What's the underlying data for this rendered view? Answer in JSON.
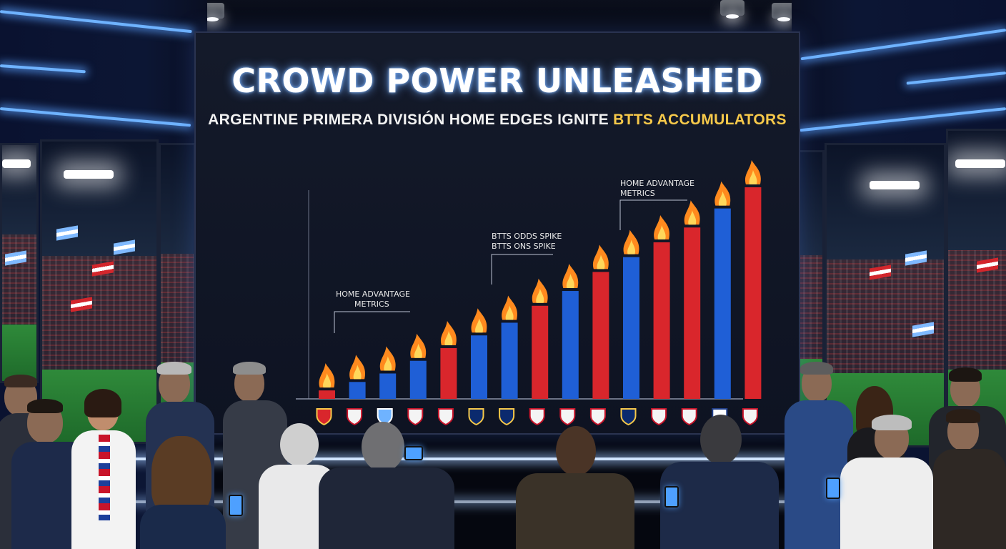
{
  "headline": "CROWD POWER UNLEASHED",
  "subheadline_main": "ARGENTINE PRIMERA DIVISIÓN HOME EDGES IGNITE",
  "subheadline_highlight": "BTTS ACCUMULATORS",
  "annotations": {
    "home_metrics_left": [
      "HOME ADVANTAGE",
      "METRICS"
    ],
    "btts_spike": [
      "BTTS ODDS SPIKE",
      "BTTS ONS SPIKE"
    ],
    "home_metrics_right": [
      "HOME ADVANTAGE",
      "METRICS"
    ]
  },
  "colors": {
    "blue_bar": "#1f5fd6",
    "red_bar": "#d9262c",
    "flame": "#ff8a1e",
    "neon": "#6fb3ff",
    "highlight": "#f7c94a"
  },
  "chart_data": {
    "type": "bar",
    "bars": [
      {
        "color": "red",
        "value": 4,
        "crest": "red-yellow-crest"
      },
      {
        "color": "blue",
        "value": 8,
        "crest": "river-crest"
      },
      {
        "color": "blue",
        "value": 12,
        "crest": "racing-crest"
      },
      {
        "color": "blue",
        "value": 18,
        "crest": "river-crest"
      },
      {
        "color": "red",
        "value": 24,
        "crest": "river-crest"
      },
      {
        "color": "blue",
        "value": 30,
        "crest": "boca-crest"
      },
      {
        "color": "blue",
        "value": 36,
        "crest": "boca-crest"
      },
      {
        "color": "red",
        "value": 44,
        "crest": "river-crest"
      },
      {
        "color": "blue",
        "value": 51,
        "crest": "river-crest"
      },
      {
        "color": "red",
        "value": 60,
        "crest": "river-crest"
      },
      {
        "color": "blue",
        "value": 67,
        "crest": "boca-crest"
      },
      {
        "color": "red",
        "value": 74,
        "crest": "river-crest"
      },
      {
        "color": "red",
        "value": 81,
        "crest": "river-crest"
      },
      {
        "color": "blue",
        "value": 90,
        "crest": "velez-crest"
      },
      {
        "color": "red",
        "value": 100,
        "crest": "river-crest"
      }
    ],
    "ylim": [
      0,
      100
    ],
    "grid": false,
    "legend": "none"
  }
}
